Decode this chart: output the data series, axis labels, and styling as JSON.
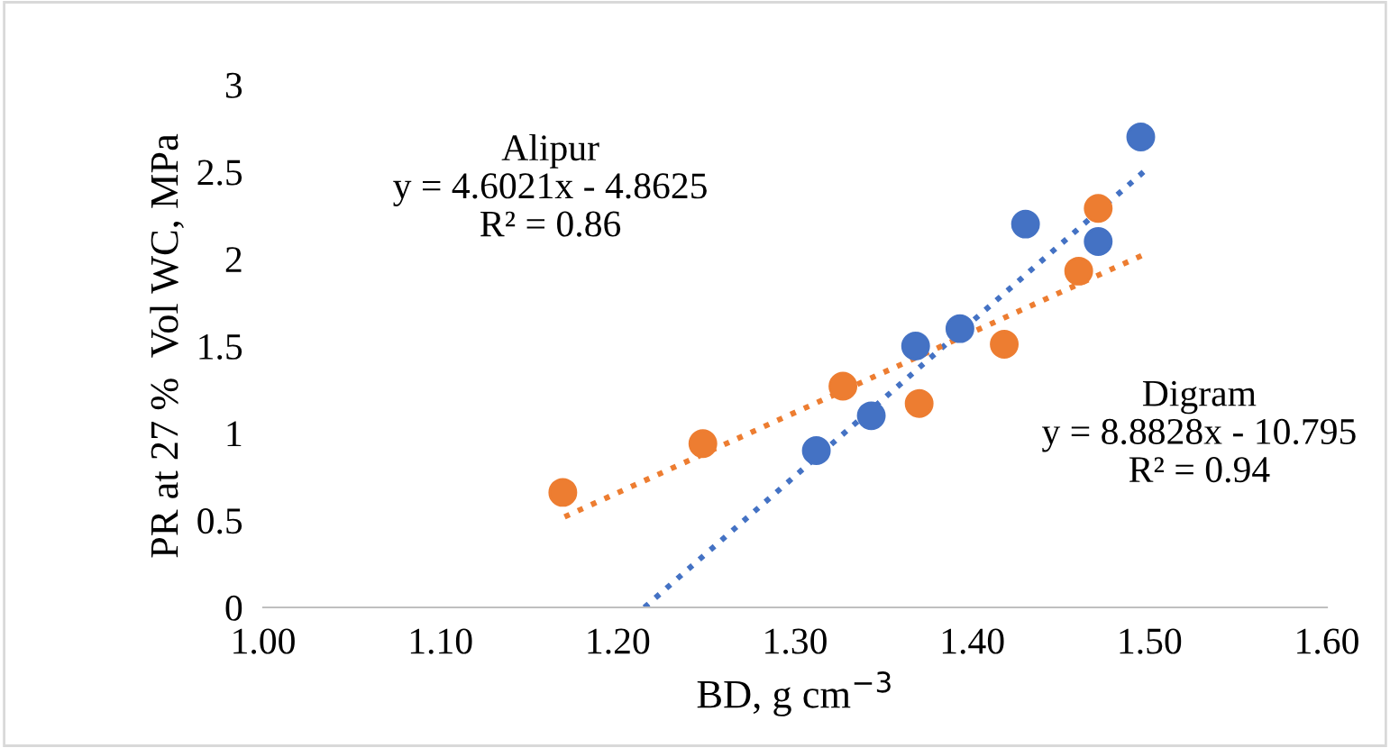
{
  "chart_data": {
    "type": "scatter",
    "xlabel": "BD, g cm$^{−3}$",
    "ylabel": "PR at 27 %  Vol WC, MPa",
    "xlim": [
      1.0,
      1.6
    ],
    "xticks": [
      {
        "value": 1.0,
        "label": "1.00"
      },
      {
        "value": 1.1,
        "label": "1.10"
      },
      {
        "value": 1.2,
        "label": "1.20"
      },
      {
        "value": 1.3,
        "label": "1.30"
      },
      {
        "value": 1.4,
        "label": "1.40"
      },
      {
        "value": 1.5,
        "label": "1.50"
      },
      {
        "value": 1.6,
        "label": "1.60"
      }
    ],
    "ylim": [
      0,
      3
    ],
    "yticks": [
      0,
      0.5,
      1,
      1.5,
      2,
      2.5,
      3
    ],
    "grid": false,
    "legend": false,
    "series": [
      {
        "marker": "circle",
        "color": "#4472c4",
        "x": [
          1.312,
          1.343,
          1.368,
          1.393,
          1.43,
          1.471,
          1.495
        ],
        "values": [
          0.9,
          1.1,
          1.5,
          1.6,
          2.2,
          2.1,
          2.7
        ]
      },
      {
        "marker": "circle",
        "color": "#ed7d31",
        "x": [
          1.169,
          1.248,
          1.327,
          1.37,
          1.418,
          1.46,
          1.471
        ],
        "values": [
          0.66,
          0.94,
          1.27,
          1.17,
          1.51,
          1.93,
          2.29
        ]
      },
      {
        "type": "line",
        "line_style": "dotted",
        "color": "#4472c4",
        "x": [
          1.215,
          1.5
        ],
        "values": [
          0,
          2.53
        ]
      },
      {
        "type": "line",
        "line_style": "dotted",
        "color": "#ed7d31",
        "x": [
          1.17,
          1.5
        ],
        "values": [
          0.52,
          2.04
        ]
      }
    ],
    "annotations": [
      "Alipur\ny = 4.6021x - 4.8625\nR² = 0.86",
      "Digram\ny = 8.8828x - 10.795\nR² = 0.94"
    ]
  }
}
